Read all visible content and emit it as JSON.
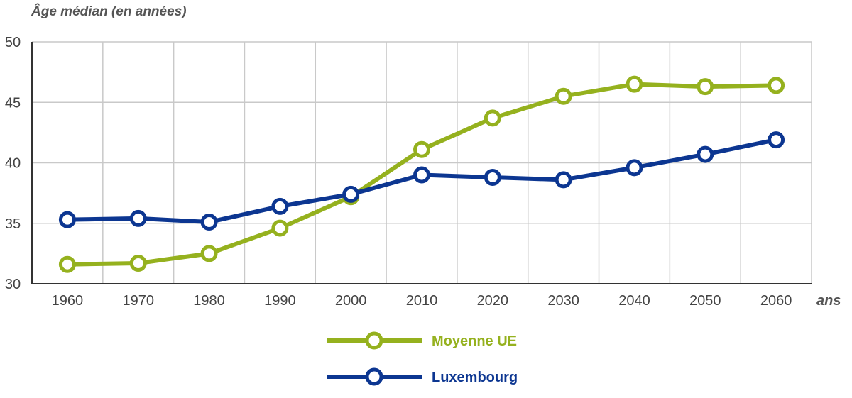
{
  "chart_data": {
    "type": "line",
    "ylabel": "Âge médian (en années)",
    "xunit": "ans",
    "x": [
      1960,
      1970,
      1980,
      1990,
      2000,
      2010,
      2020,
      2030,
      2040,
      2050,
      2060
    ],
    "ylim": [
      30,
      50
    ],
    "yticks": [
      30,
      35,
      40,
      45,
      50
    ],
    "grid": true,
    "legend_position": "bottom-center",
    "series": [
      {
        "name": "Moyenne UE",
        "color": "#95b11e",
        "values": [
          31.6,
          31.7,
          32.5,
          34.6,
          37.2,
          41.1,
          43.7,
          45.5,
          46.5,
          46.3,
          46.4
        ]
      },
      {
        "name": "Luxembourg",
        "color": "#0c3691",
        "values": [
          35.3,
          35.4,
          35.1,
          36.4,
          37.4,
          39.0,
          38.8,
          38.6,
          39.6,
          40.7,
          41.9
        ]
      }
    ]
  }
}
